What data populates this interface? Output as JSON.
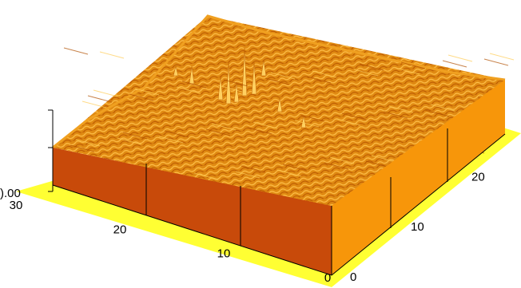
{
  "chart_data": {
    "type": "surface",
    "title": "",
    "xlabel": "",
    "ylabel": "",
    "zlabel": "",
    "x_axis": {
      "ticks": [
        "0",
        "10",
        "20",
        "30"
      ],
      "range": [
        0,
        30
      ]
    },
    "y_axis": {
      "ticks": [
        "0",
        "10",
        "20"
      ],
      "range": [
        0,
        30
      ]
    },
    "z_axis": {
      "ticks": [
        ").00"
      ]
    },
    "grid": false,
    "legend": "none",
    "colors": {
      "floor": "#ffff33",
      "front_wall": "#c84a0a",
      "side_wall": "#f7960a",
      "surface_dark": "#c05a00",
      "surface_mid": "#e8920a",
      "surface_light": "#ffc850"
    }
  }
}
